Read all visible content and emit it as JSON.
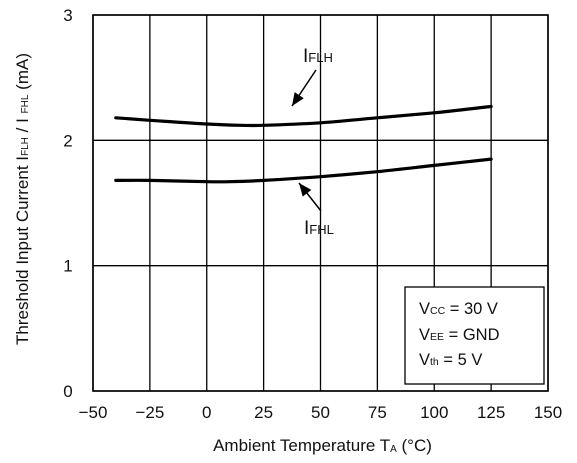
{
  "chart_data": {
    "type": "line",
    "xlabel": {
      "main": "Ambient Temperature  T",
      "sub": "A",
      "unit": " (°C)"
    },
    "ylabel": {
      "main": "Threshold Input Current  I",
      "sub1": "FLH",
      "mid": " / I ",
      "sub2": "FHL",
      "unit": "  (mA)"
    },
    "xlim": [
      -50,
      150
    ],
    "ylim": [
      0,
      3
    ],
    "x_ticks": [
      "-50",
      "-25",
      "0",
      "25",
      "50",
      "75",
      "100",
      "125",
      "150"
    ],
    "y_ticks": [
      "0",
      "1",
      "2",
      "3"
    ],
    "grid": true,
    "series": [
      {
        "name_main": "I",
        "name_sub": "FLH",
        "points": [
          [
            -40,
            2.18
          ],
          [
            -25,
            2.16
          ],
          [
            0,
            2.13
          ],
          [
            15,
            2.12
          ],
          [
            25,
            2.12
          ],
          [
            50,
            2.14
          ],
          [
            75,
            2.18
          ],
          [
            100,
            2.22
          ],
          [
            125,
            2.27
          ]
        ]
      },
      {
        "name_main": "I",
        "name_sub": "FHL",
        "points": [
          [
            -40,
            1.68
          ],
          [
            -25,
            1.68
          ],
          [
            0,
            1.67
          ],
          [
            10,
            1.67
          ],
          [
            25,
            1.68
          ],
          [
            50,
            1.71
          ],
          [
            75,
            1.75
          ],
          [
            100,
            1.8
          ],
          [
            125,
            1.85
          ]
        ]
      }
    ],
    "conditions": [
      {
        "main": "V",
        "sub": "CC",
        "value": " = 30 V"
      },
      {
        "main": "V",
        "sub": "EE",
        "value": " = GND"
      },
      {
        "main": "V",
        "sub": "th",
        "value": " = 5 V"
      }
    ],
    "legend_placement": "bottom-right, inside plot"
  }
}
